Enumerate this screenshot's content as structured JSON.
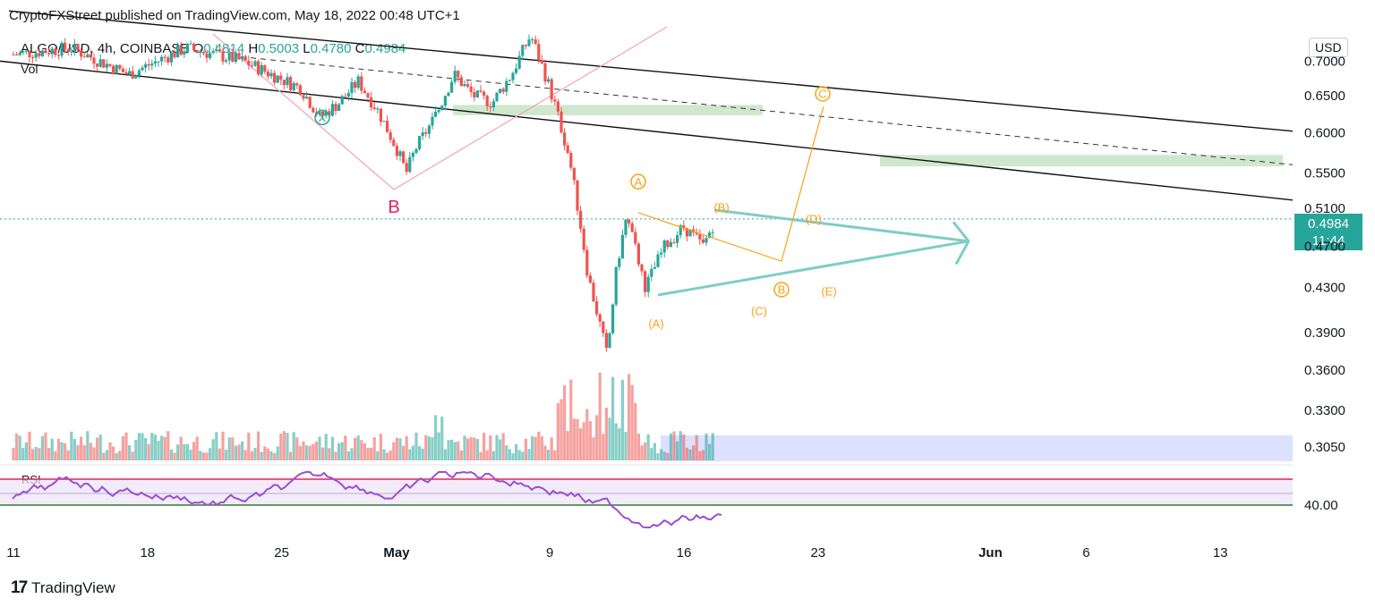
{
  "header": {
    "publisher": "CryptoFXStreet published on TradingView.com, May 18, 2022 00:48 UTC+1"
  },
  "symbol": {
    "name": "ALGO/USD, 4h, COINBASE",
    "open_label": "O",
    "open": "0.4814",
    "high_label": "H",
    "high": "0.5003",
    "low_label": "L",
    "low": "0.4780",
    "close_label": "C",
    "close": "0.4984"
  },
  "indicators": {
    "volume": "Vol",
    "rsi": "RSI"
  },
  "currency": "USD",
  "last_price": {
    "value": "0.4984",
    "countdown": "11:44"
  },
  "footer": {
    "brand": "TradingView",
    "logo": "tradingview-logo-icon"
  },
  "colors": {
    "up": "#26a69a",
    "down": "#ef5350",
    "rsi": "#9c4fd0",
    "wave": "#f7a21b",
    "triangle": "#7fcdc6",
    "zone": "#cfe8cd",
    "volume_zone": "#d6dcff"
  },
  "chart_data": {
    "type": "candlestick",
    "x_ticks": [
      "11",
      "18",
      "25",
      "May",
      "9",
      "16",
      "23",
      "Jun",
      "6",
      "13"
    ],
    "price_ticks": [
      "0.7000",
      "0.6500",
      "0.6000",
      "0.5500",
      "0.5100",
      "0.4700",
      "0.4300",
      "0.3900",
      "0.3600",
      "0.3300",
      "0.3050"
    ],
    "rsi_ticks": [
      "40.00"
    ],
    "price_scale": "log",
    "ylim": [
      0.298,
      0.745
    ],
    "price_path": [
      {
        "d": "2022-04-11",
        "p": 0.71
      },
      {
        "d": "2022-04-14",
        "p": 0.72
      },
      {
        "d": "2022-04-17",
        "p": 0.68
      },
      {
        "d": "2022-04-20",
        "p": 0.72
      },
      {
        "d": "2022-04-23",
        "p": 0.7
      },
      {
        "d": "2022-04-26",
        "p": 0.66
      },
      {
        "d": "2022-04-27",
        "p": 0.62
      },
      {
        "d": "2022-04-28",
        "p": 0.64
      },
      {
        "d": "2022-04-29",
        "p": 0.67
      },
      {
        "d": "2022-04-30",
        "p": 0.63
      },
      {
        "d": "2022-05-01",
        "p": 0.58
      },
      {
        "d": "2022-05-01T12:00",
        "p": 0.55
      },
      {
        "d": "2022-05-02",
        "p": 0.58
      },
      {
        "d": "2022-05-03",
        "p": 0.62
      },
      {
        "d": "2022-05-04",
        "p": 0.68
      },
      {
        "d": "2022-05-05",
        "p": 0.65
      },
      {
        "d": "2022-05-06",
        "p": 0.64
      },
      {
        "d": "2022-05-07",
        "p": 0.68
      },
      {
        "d": "2022-05-08",
        "p": 0.74
      },
      {
        "d": "2022-05-09",
        "p": 0.66
      },
      {
        "d": "2022-05-10",
        "p": 0.57
      },
      {
        "d": "2022-05-11",
        "p": 0.44
      },
      {
        "d": "2022-05-12",
        "p": 0.37
      },
      {
        "d": "2022-05-12T12:00",
        "p": 0.45
      },
      {
        "d": "2022-05-13",
        "p": 0.5
      },
      {
        "d": "2022-05-14",
        "p": 0.43
      },
      {
        "d": "2022-05-15",
        "p": 0.47
      },
      {
        "d": "2022-05-16",
        "p": 0.49
      },
      {
        "d": "2022-05-17",
        "p": 0.47
      },
      {
        "d": "2022-05-17T16:00",
        "p": 0.4984
      }
    ],
    "elliott_labels": [
      "B",
      "X",
      "A",
      "(A)",
      "(B)",
      "(C)",
      "(D)",
      "(E)",
      "B",
      "C"
    ]
  }
}
